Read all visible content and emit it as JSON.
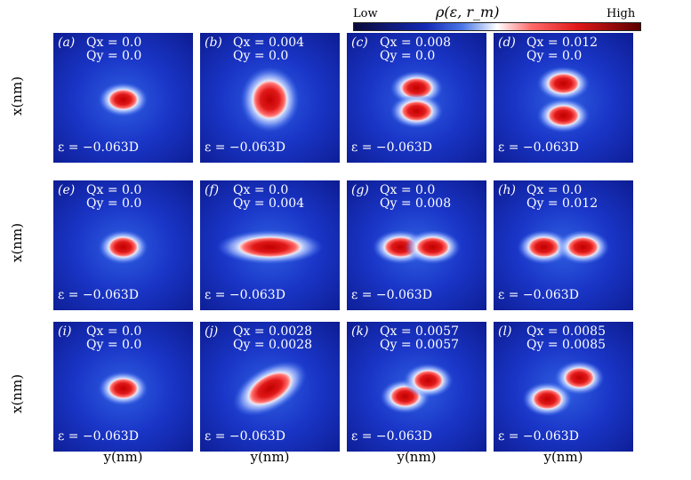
{
  "colorbar": {
    "low_label": "Low",
    "high_label": "High",
    "title": "ρ(ε, r_m)"
  },
  "axes": {
    "ylabel": "x(nm)",
    "xlabel": "y(nm)"
  },
  "chart_data": {
    "type": "heatmap",
    "colorbar_title": "ρ(ε, r_m)",
    "colorbar_range": [
      "Low",
      "High"
    ],
    "xlabel": "y(nm)",
    "ylabel": "x(nm)",
    "panels": [
      {
        "label": "(a)",
        "qx_text": "Qx = 0.0",
        "qy_text": "Qy = 0.0",
        "qx": 0.0,
        "qy": 0.0,
        "energy": "ε = −0.063D",
        "shape": "single"
      },
      {
        "label": "(b)",
        "qx_text": "Qx = 0.004",
        "qy_text": "Qy = 0.0",
        "qx": 0.004,
        "qy": 0.0,
        "energy": "ε = −0.063D",
        "shape": "tall"
      },
      {
        "label": "(c)",
        "qx_text": "Qx = 0.008",
        "qy_text": "Qy = 0.0",
        "qx": 0.008,
        "qy": 0.0,
        "energy": "ε = −0.063D",
        "shape": "split-vertical"
      },
      {
        "label": "(d)",
        "qx_text": "Qx = 0.012",
        "qy_text": "Qy = 0.0",
        "qx": 0.012,
        "qy": 0.0,
        "energy": "ε = −0.063D",
        "shape": "split-vertical-wide"
      },
      {
        "label": "(e)",
        "qx_text": "Qx = 0.0",
        "qy_text": "Qy = 0.0",
        "qx": 0.0,
        "qy": 0.0,
        "energy": "ε = −0.063D",
        "shape": "single"
      },
      {
        "label": "(f)",
        "qx_text": "Qx = 0.0",
        "qy_text": "Qy = 0.004",
        "qx": 0.0,
        "qy": 0.004,
        "energy": "ε = −0.063D",
        "shape": "wide"
      },
      {
        "label": "(g)",
        "qx_text": "Qx = 0.0",
        "qy_text": "Qy = 0.008",
        "qx": 0.0,
        "qy": 0.008,
        "energy": "ε = −0.063D",
        "shape": "split-horizontal"
      },
      {
        "label": "(h)",
        "qx_text": "Qx = 0.0",
        "qy_text": "Qy = 0.012",
        "qx": 0.0,
        "qy": 0.012,
        "energy": "ε = −0.063D",
        "shape": "split-horizontal-wide"
      },
      {
        "label": "(i)",
        "qx_text": "Qx = 0.0",
        "qy_text": "Qy = 0.0",
        "qx": 0.0,
        "qy": 0.0,
        "energy": "ε = −0.063D",
        "shape": "single"
      },
      {
        "label": "(j)",
        "qx_text": "Qx = 0.0028",
        "qy_text": "Qy = 0.0028",
        "qx": 0.0028,
        "qy": 0.0028,
        "energy": "ε = −0.063D",
        "shape": "diagonal"
      },
      {
        "label": "(k)",
        "qx_text": "Qx = 0.0057",
        "qy_text": "Qy = 0.0057",
        "qx": 0.0057,
        "qy": 0.0057,
        "energy": "ε = −0.063D",
        "shape": "split-diagonal"
      },
      {
        "label": "(l)",
        "qx_text": "Qx = 0.0085",
        "qy_text": "Qy = 0.0085",
        "qx": 0.0085,
        "qy": 0.0085,
        "energy": "ε = −0.063D",
        "shape": "split-diagonal-wide"
      }
    ]
  }
}
